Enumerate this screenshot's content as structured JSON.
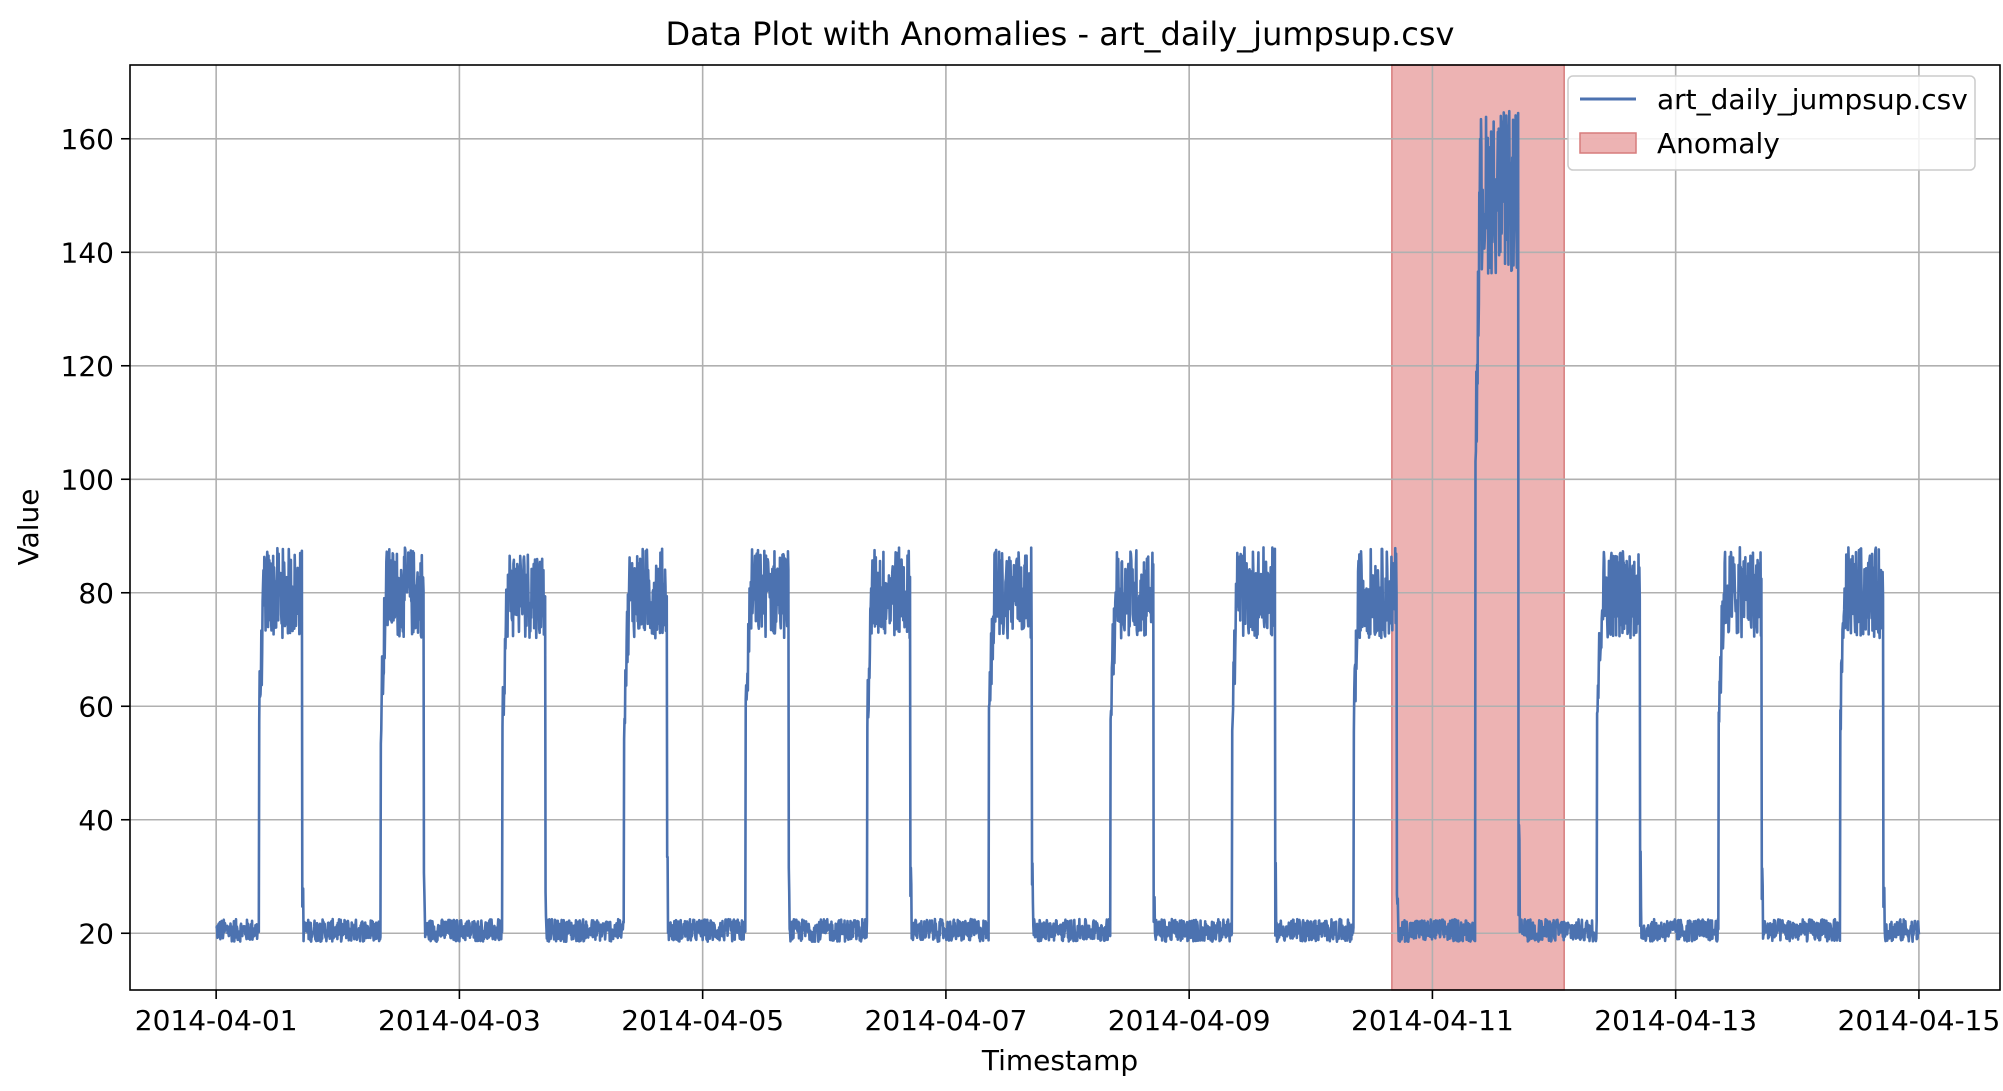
{
  "chart_data": {
    "type": "line",
    "title": "Data Plot with Anomalies - art_daily_jumpsup.csv",
    "xlabel": "Timestamp",
    "ylabel": "Value",
    "xlim": [
      "2014-03-31T07:00",
      "2014-04-15T16:00"
    ],
    "ylim": [
      10,
      173
    ],
    "x_ticks": [
      "2014-04-01",
      "2014-04-03",
      "2014-04-05",
      "2014-04-07",
      "2014-04-09",
      "2014-04-11",
      "2014-04-13",
      "2014-04-15"
    ],
    "y_ticks": [
      20,
      40,
      60,
      80,
      100,
      120,
      140,
      160
    ],
    "grid": true,
    "legend_position": "top-right",
    "sampling_interval_minutes": 5,
    "series": [
      {
        "name": "art_daily_jumpsup.csv",
        "color": "#4c72b0",
        "x_start": "2014-04-01T00:00",
        "x_end": "2014-04-15T00:00",
        "daily_pattern": {
          "baseline_range": [
            18.5,
            22.5
          ],
          "rise_start_time": "08:30",
          "rise_end_time": "09:30",
          "fall_start_time": "17:00",
          "fall_end_time": "19:00",
          "plateau_range": [
            72,
            88
          ]
        },
        "jump_day": {
          "date": "2014-04-11",
          "plateau_range": [
            136,
            165
          ]
        }
      }
    ],
    "anomaly_regions": [
      {
        "name": "Anomaly",
        "x_start": "2014-04-10T16:00",
        "x_end": "2014-04-12T02:00",
        "color": "#e8a0a0"
      }
    ]
  }
}
